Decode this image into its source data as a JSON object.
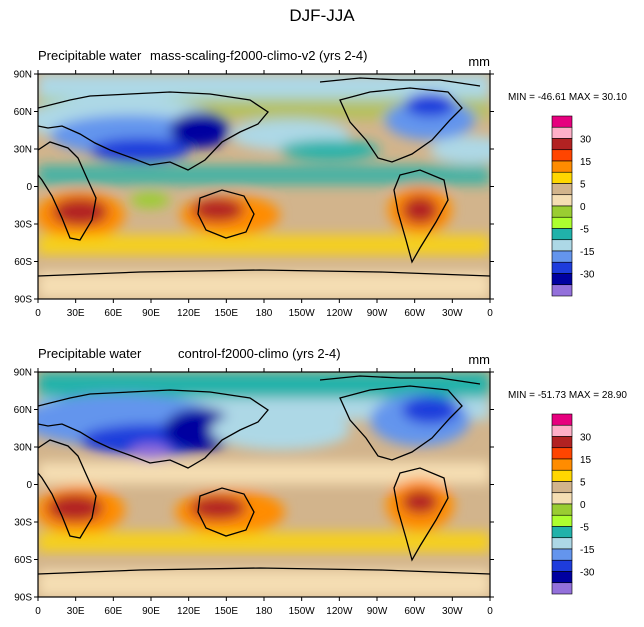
{
  "figure": {
    "title": "DJF-JJA"
  },
  "chart_data": [
    {
      "type": "heatmap",
      "title": "Precipitable water",
      "case": "mass-scaling-f2000-climo-v2 (yrs 2-4)",
      "units": "mm",
      "stats": "MIN = -46.61  MAX =  30.10",
      "x_ticks": [
        "0",
        "30E",
        "60E",
        "90E",
        "120E",
        "150E",
        "180",
        "150W",
        "120W",
        "90W",
        "60W",
        "30W",
        "0"
      ],
      "y_ticks": [
        "90N",
        "60N",
        "30N",
        "0",
        "30S",
        "60S",
        "90S"
      ],
      "xlim": [
        0,
        360
      ],
      "ylim": [
        -90,
        90
      ],
      "colorbar": {
        "levels": [
          -35,
          -30,
          -25,
          -20,
          -15,
          -10,
          -5,
          0,
          5,
          10,
          15,
          20,
          25,
          30,
          35
        ],
        "labels": [
          "30",
          "15",
          "5",
          "0",
          "-5",
          "-15",
          "-30"
        ],
        "colors": [
          "#e6007e",
          "#ffb0c8",
          "#b22222",
          "#ff4500",
          "#ff8c00",
          "#ffd700",
          "#d2b48c",
          "#f5deb3",
          "#9acd32",
          "#adff2f",
          "#20b2aa",
          "#add8e6",
          "#6495ed",
          "#1e3cdc",
          "#0000a0",
          "#9370db"
        ]
      }
    },
    {
      "type": "heatmap",
      "title": "Precipitable water",
      "case": "control-f2000-climo (yrs 2-4)",
      "units": "mm",
      "stats": "MIN = -51.73  MAX =  28.90",
      "x_ticks": [
        "0",
        "30E",
        "60E",
        "90E",
        "120E",
        "150E",
        "180",
        "150W",
        "120W",
        "90W",
        "60W",
        "30W",
        "0"
      ],
      "y_ticks": [
        "90N",
        "60N",
        "30N",
        "0",
        "30S",
        "60S",
        "90S"
      ],
      "xlim": [
        0,
        360
      ],
      "ylim": [
        -90,
        90
      ],
      "colorbar": {
        "levels": [
          -35,
          -30,
          -25,
          -20,
          -15,
          -10,
          -5,
          0,
          5,
          10,
          15,
          20,
          25,
          30,
          35
        ],
        "labels": [
          "30",
          "15",
          "5",
          "0",
          "-5",
          "-15",
          "-30"
        ],
        "colors": [
          "#e6007e",
          "#ffb0c8",
          "#b22222",
          "#ff4500",
          "#ff8c00",
          "#ffd700",
          "#d2b48c",
          "#f5deb3",
          "#9acd32",
          "#adff2f",
          "#20b2aa",
          "#add8e6",
          "#6495ed",
          "#1e3cdc",
          "#0000a0",
          "#9370db"
        ]
      }
    }
  ]
}
